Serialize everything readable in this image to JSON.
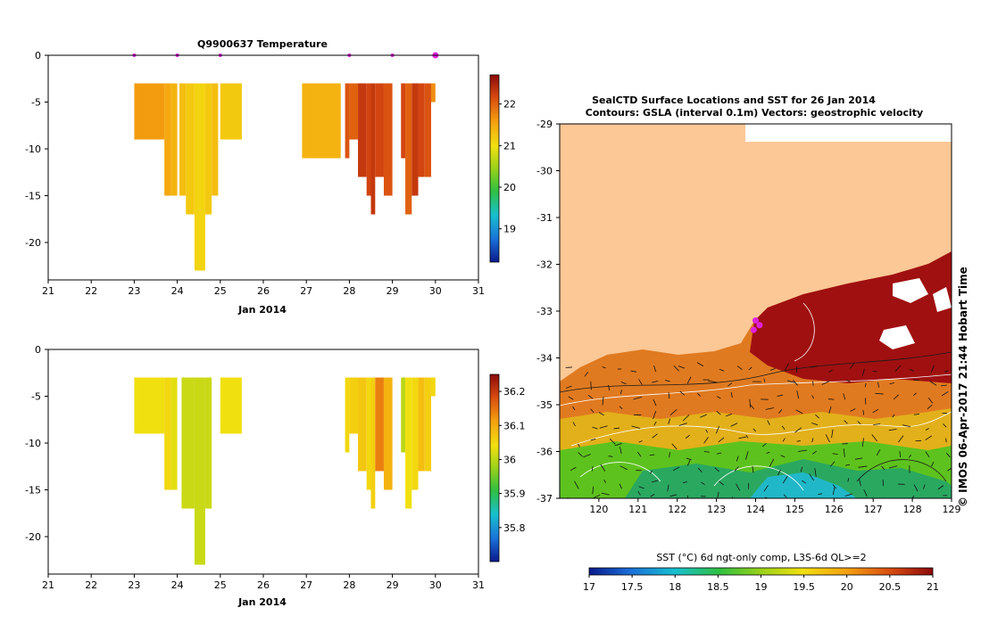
{
  "chart_data": [
    {
      "type": "bar",
      "name": "temperature-profile",
      "title": "Q9900637  Temperature",
      "xlabel": "Jan 2014",
      "ylabel": "",
      "xlim": [
        21,
        31
      ],
      "ylim": [
        -24,
        0
      ],
      "xticks": [
        "21",
        "22",
        "23",
        "24",
        "25",
        "26",
        "27",
        "28",
        "29",
        "30",
        "31"
      ],
      "yticks": [
        "0",
        "-5",
        "-10",
        "-15",
        "-20"
      ],
      "colorbar": {
        "min": 18.2,
        "max": 22.7,
        "ticks": [
          "22",
          "21",
          "20",
          "19"
        ]
      },
      "surface_markers": [
        23,
        24,
        25,
        28,
        29,
        30
      ],
      "profiles": [
        {
          "x0": 23.0,
          "x1": 23.7,
          "depth": -9,
          "value": 21.6
        },
        {
          "x0": 23.7,
          "x1": 23.85,
          "depth": -15,
          "value": 21.5
        },
        {
          "x0": 23.85,
          "x1": 24.0,
          "depth": -15,
          "value": 21.4
        },
        {
          "x0": 24.05,
          "x1": 24.2,
          "depth": -15,
          "value": 21.3
        },
        {
          "x0": 24.2,
          "x1": 24.4,
          "depth": -17,
          "value": 21.2
        },
        {
          "x0": 24.4,
          "x1": 24.65,
          "depth": -23,
          "value": 21.1
        },
        {
          "x0": 24.65,
          "x1": 24.8,
          "depth": -17,
          "value": 21.2
        },
        {
          "x0": 24.8,
          "x1": 24.95,
          "depth": -15,
          "value": 21.3
        },
        {
          "x0": 25.0,
          "x1": 25.5,
          "depth": -9,
          "value": 21.2
        },
        {
          "x0": 26.9,
          "x1": 27.8,
          "depth": -11,
          "value": 21.4
        },
        {
          "x0": 27.9,
          "x1": 28.0,
          "depth": -11,
          "value": 22.1
        },
        {
          "x0": 28.0,
          "x1": 28.2,
          "depth": -9,
          "value": 22.0
        },
        {
          "x0": 28.2,
          "x1": 28.4,
          "depth": -13,
          "value": 22.3
        },
        {
          "x0": 28.4,
          "x1": 28.5,
          "depth": -15,
          "value": 22.2
        },
        {
          "x0": 28.5,
          "x1": 28.6,
          "depth": -17,
          "value": 22.3
        },
        {
          "x0": 28.6,
          "x1": 28.8,
          "depth": -13,
          "value": 22.2
        },
        {
          "x0": 28.8,
          "x1": 29.0,
          "depth": -15,
          "value": 22.1
        },
        {
          "x0": 29.2,
          "x1": 29.3,
          "depth": -11,
          "value": 22.2
        },
        {
          "x0": 29.3,
          "x1": 29.45,
          "depth": -17,
          "value": 22.0
        },
        {
          "x0": 29.45,
          "x1": 29.6,
          "depth": -15,
          "value": 22.3
        },
        {
          "x0": 29.6,
          "x1": 29.75,
          "depth": -13,
          "value": 22.2
        },
        {
          "x0": 29.75,
          "x1": 29.9,
          "depth": -13,
          "value": 22.1
        },
        {
          "x0": 29.9,
          "x1": 30.0,
          "depth": -5,
          "value": 21.7
        }
      ]
    },
    {
      "type": "bar",
      "name": "salinity-profile",
      "title": "",
      "xlabel": "Jan 2014",
      "ylabel": "",
      "xlim": [
        21,
        31
      ],
      "ylim": [
        -24,
        0
      ],
      "xticks": [
        "21",
        "22",
        "23",
        "24",
        "25",
        "26",
        "27",
        "28",
        "29",
        "30",
        "31"
      ],
      "yticks": [
        "0",
        "-5",
        "-10",
        "-15",
        "-20"
      ],
      "colorbar": {
        "min": 35.7,
        "max": 36.25,
        "ticks": [
          "36.2",
          "36.1",
          "36",
          "35.9",
          "35.8"
        ]
      },
      "profiles": [
        {
          "x0": 23.0,
          "x1": 23.7,
          "depth": -9,
          "value": 36.04
        },
        {
          "x0": 23.7,
          "x1": 23.85,
          "depth": -15,
          "value": 36.05
        },
        {
          "x0": 23.85,
          "x1": 24.0,
          "depth": -15,
          "value": 36.03
        },
        {
          "x0": 24.1,
          "x1": 24.4,
          "depth": -17,
          "value": 36.01
        },
        {
          "x0": 24.4,
          "x1": 24.65,
          "depth": -23,
          "value": 36.01
        },
        {
          "x0": 24.65,
          "x1": 24.8,
          "depth": -17,
          "value": 36.01
        },
        {
          "x0": 25.0,
          "x1": 25.5,
          "depth": -9,
          "value": 36.04
        },
        {
          "x0": 27.9,
          "x1": 28.0,
          "depth": -11,
          "value": 36.05
        },
        {
          "x0": 28.0,
          "x1": 28.2,
          "depth": -9,
          "value": 36.06
        },
        {
          "x0": 28.2,
          "x1": 28.4,
          "depth": -13,
          "value": 36.07
        },
        {
          "x0": 28.4,
          "x1": 28.5,
          "depth": -15,
          "value": 36.05
        },
        {
          "x0": 28.5,
          "x1": 28.6,
          "depth": -17,
          "value": 36.06
        },
        {
          "x0": 28.6,
          "x1": 28.8,
          "depth": -13,
          "value": 36.14
        },
        {
          "x0": 28.8,
          "x1": 29.0,
          "depth": -15,
          "value": 36.09
        },
        {
          "x0": 29.2,
          "x1": 29.3,
          "depth": -11,
          "value": 36.0
        },
        {
          "x0": 29.3,
          "x1": 29.45,
          "depth": -17,
          "value": 36.04
        },
        {
          "x0": 29.45,
          "x1": 29.6,
          "depth": -15,
          "value": 36.05
        },
        {
          "x0": 29.6,
          "x1": 29.75,
          "depth": -13,
          "value": 36.08
        },
        {
          "x0": 29.75,
          "x1": 29.9,
          "depth": -13,
          "value": 36.06
        },
        {
          "x0": 29.9,
          "x1": 30.0,
          "depth": -5,
          "value": 36.05
        }
      ]
    },
    {
      "type": "heatmap",
      "name": "sst-map",
      "title": "SealCTD Surface Locations and SST for 26 Jan 2014",
      "subtitle": "Contours: GSLA (interval 0.1m) Vectors: geostrophic velocity",
      "xlim": [
        119,
        129
      ],
      "ylim": [
        -37,
        -29
      ],
      "xticks": [
        "120",
        "121",
        "122",
        "123",
        "124",
        "125",
        "126",
        "127",
        "128",
        "129"
      ],
      "yticks": [
        "-29",
        "-30",
        "-31",
        "-32",
        "-33",
        "-34",
        "-35",
        "-36",
        "-37"
      ],
      "colorbar_label": "SST (°C) 6d ngt-only comp, L3S-6d QL>=2",
      "colorbar": {
        "min": 17,
        "max": 21,
        "ticks": [
          "17",
          "17.5",
          "18",
          "18.5",
          "19",
          "19.5",
          "20",
          "20.5",
          "21"
        ]
      },
      "sealctd_locations": [
        [
          124.0,
          -33.2
        ],
        [
          124.1,
          -33.3
        ],
        [
          123.95,
          -33.4
        ]
      ],
      "credit": "© IMOS 06-Apr-2017 21:44 Hobart Time"
    }
  ]
}
